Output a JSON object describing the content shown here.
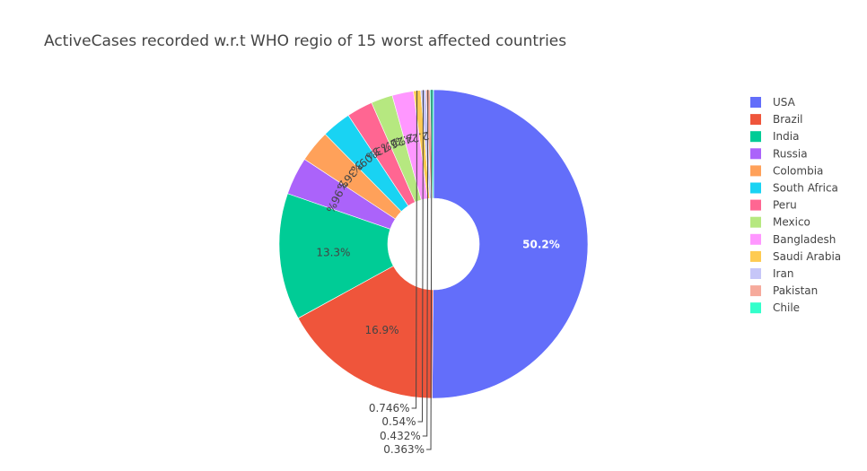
{
  "chart_data": {
    "type": "pie",
    "hole": true,
    "title": "ActiveCases recorded w.r.t WHO regio of 15 worst affected countries",
    "legend_position": "right",
    "slices": [
      {
        "name": "USA",
        "percent": 50.2,
        "label": "50.2%",
        "color": "#636efa"
      },
      {
        "name": "Brazil",
        "percent": 16.9,
        "label": "16.9%",
        "color": "#EF553B"
      },
      {
        "name": "India",
        "percent": 13.3,
        "label": "13.3%",
        "color": "#00cc96"
      },
      {
        "name": "Russia",
        "percent": 3.96,
        "label": "3.96%",
        "color": "#ab63fa"
      },
      {
        "name": "Colombia",
        "percent": 3.36,
        "label": "3.36%",
        "color": "#FFA15A"
      },
      {
        "name": "South Africa",
        "percent": 3.09,
        "label": "3.09%",
        "color": "#19d3f3"
      },
      {
        "name": "Peru",
        "percent": 2.73,
        "label": "2.73%",
        "color": "#FF6692"
      },
      {
        "name": "Mexico",
        "percent": 2.26,
        "label": "2.26%",
        "color": "#B6E880"
      },
      {
        "name": "Bangladesh",
        "percent": 2.24,
        "label": "2.24%",
        "color": "#FF97FF"
      },
      {
        "name": "Saudi Arabia",
        "percent": 0.746,
        "label": "0.746%",
        "color": "#FECB52"
      },
      {
        "name": "Iran",
        "percent": 0.54,
        "label": "0.54%",
        "color": "#c6c6f8"
      },
      {
        "name": "Pakistan",
        "percent": 0.432,
        "label": "0.432%",
        "color": "#f6aa9c"
      },
      {
        "name": "Chile",
        "percent": 0.363,
        "label": "0.363%",
        "color": "#33ffcb"
      }
    ]
  }
}
